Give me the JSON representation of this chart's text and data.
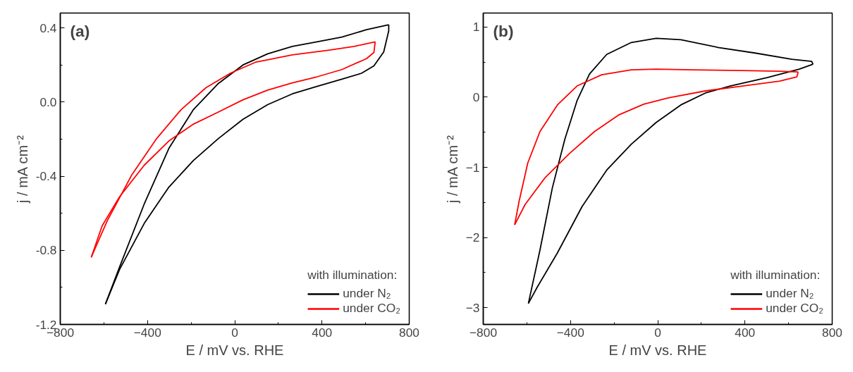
{
  "chart_data": [
    {
      "type": "line",
      "title": "(a)",
      "xlabel": "E / mV vs. RHE",
      "ylabel": "j / mA cm⁻²",
      "legend_title": "with illumination:",
      "legend": "bottom right",
      "grid": false,
      "line_style": "solid",
      "xlim": [
        -800,
        800
      ],
      "xticks": [
        -800,
        -400,
        0,
        400,
        800
      ],
      "ylim": [
        -1.2,
        0.48
      ],
      "yticks": [
        {
          "value": -1.2,
          "label": "-1.2"
        },
        {
          "value": -0.8,
          "label": "-0.8"
        },
        {
          "value": -0.4,
          "label": "-0.4"
        },
        {
          "value": 0.0,
          "label": "0.0"
        },
        {
          "value": 0.4,
          "label": "0.4"
        }
      ],
      "series": [
        {
          "name": "under N₂",
          "color": "#000000",
          "x": [
            -593,
            -528,
            -415,
            -302,
            -189,
            -75,
            38,
            151,
            264,
            377,
            491,
            604,
            706,
            706,
            683,
            638,
            581,
            491,
            377,
            264,
            151,
            38,
            -75,
            -189,
            -302,
            -415,
            -528,
            -593
          ],
          "values": [
            -1.09,
            -0.89,
            -0.55,
            -0.25,
            -0.04,
            0.1,
            0.2,
            0.26,
            0.3,
            0.325,
            0.35,
            0.39,
            0.417,
            0.384,
            0.27,
            0.195,
            0.155,
            0.123,
            0.084,
            0.044,
            -0.014,
            -0.093,
            -0.197,
            -0.315,
            -0.459,
            -0.655,
            -0.903,
            -1.09
          ]
        },
        {
          "name": "under CO₂",
          "color": "#ff0000",
          "x": [
            -658,
            -585,
            -472,
            -358,
            -245,
            -132,
            -19,
            94,
            264,
            434,
            547,
            644,
            638,
            604,
            491,
            377,
            264,
            151,
            38,
            -75,
            -189,
            -302,
            -415,
            -528,
            -608,
            -658
          ],
          "values": [
            -0.838,
            -0.642,
            -0.393,
            -0.197,
            -0.04,
            0.077,
            0.156,
            0.214,
            0.254,
            0.28,
            0.3,
            0.325,
            0.267,
            0.234,
            0.175,
            0.136,
            0.103,
            0.064,
            0.012,
            -0.054,
            -0.119,
            -0.21,
            -0.341,
            -0.511,
            -0.668,
            -0.838
          ]
        }
      ]
    },
    {
      "type": "line",
      "title": "(b)",
      "xlabel": "E / mV vs. RHE",
      "ylabel": "j / mA cm⁻²",
      "legend_title": "with illumination:",
      "legend": "bottom right",
      "grid": false,
      "line_style": "solid",
      "xlim": [
        -800,
        800
      ],
      "xticks": [
        -800,
        -400,
        0,
        400,
        800
      ],
      "ylim": [
        -3.24,
        1.2
      ],
      "yticks": [
        -3,
        -2,
        -1,
        0,
        1
      ],
      "series": [
        {
          "name": "under N₂",
          "color": "#000000",
          "x": [
            -593,
            -540,
            -483,
            -426,
            -370,
            -313,
            -234,
            -121,
            -7,
            106,
            276,
            446,
            615,
            706,
            712,
            649,
            502,
            332,
            219,
            106,
            -7,
            -121,
            -234,
            -347,
            -460,
            -551,
            -593
          ],
          "values": [
            -2.94,
            -2.18,
            -1.29,
            -0.6,
            -0.05,
            0.33,
            0.61,
            0.78,
            0.84,
            0.82,
            0.71,
            0.63,
            0.54,
            0.51,
            0.47,
            0.4,
            0.28,
            0.16,
            0.06,
            -0.11,
            -0.36,
            -0.67,
            -1.04,
            -1.56,
            -2.22,
            -2.7,
            -2.94
          ]
        },
        {
          "name": "under CO₂",
          "color": "#ff0000",
          "x": [
            -656,
            -636,
            -596,
            -540,
            -460,
            -370,
            -257,
            -121,
            -7,
            162,
            389,
            559,
            644,
            638,
            559,
            389,
            219,
            49,
            -64,
            -177,
            -290,
            -404,
            -517,
            -608,
            -656
          ],
          "values": [
            -1.82,
            -1.49,
            -0.94,
            -0.49,
            -0.11,
            0.16,
            0.32,
            0.39,
            0.4,
            0.39,
            0.38,
            0.37,
            0.36,
            0.29,
            0.23,
            0.16,
            0.09,
            -0.01,
            -0.1,
            -0.25,
            -0.49,
            -0.8,
            -1.15,
            -1.53,
            -1.82
          ]
        }
      ]
    }
  ]
}
